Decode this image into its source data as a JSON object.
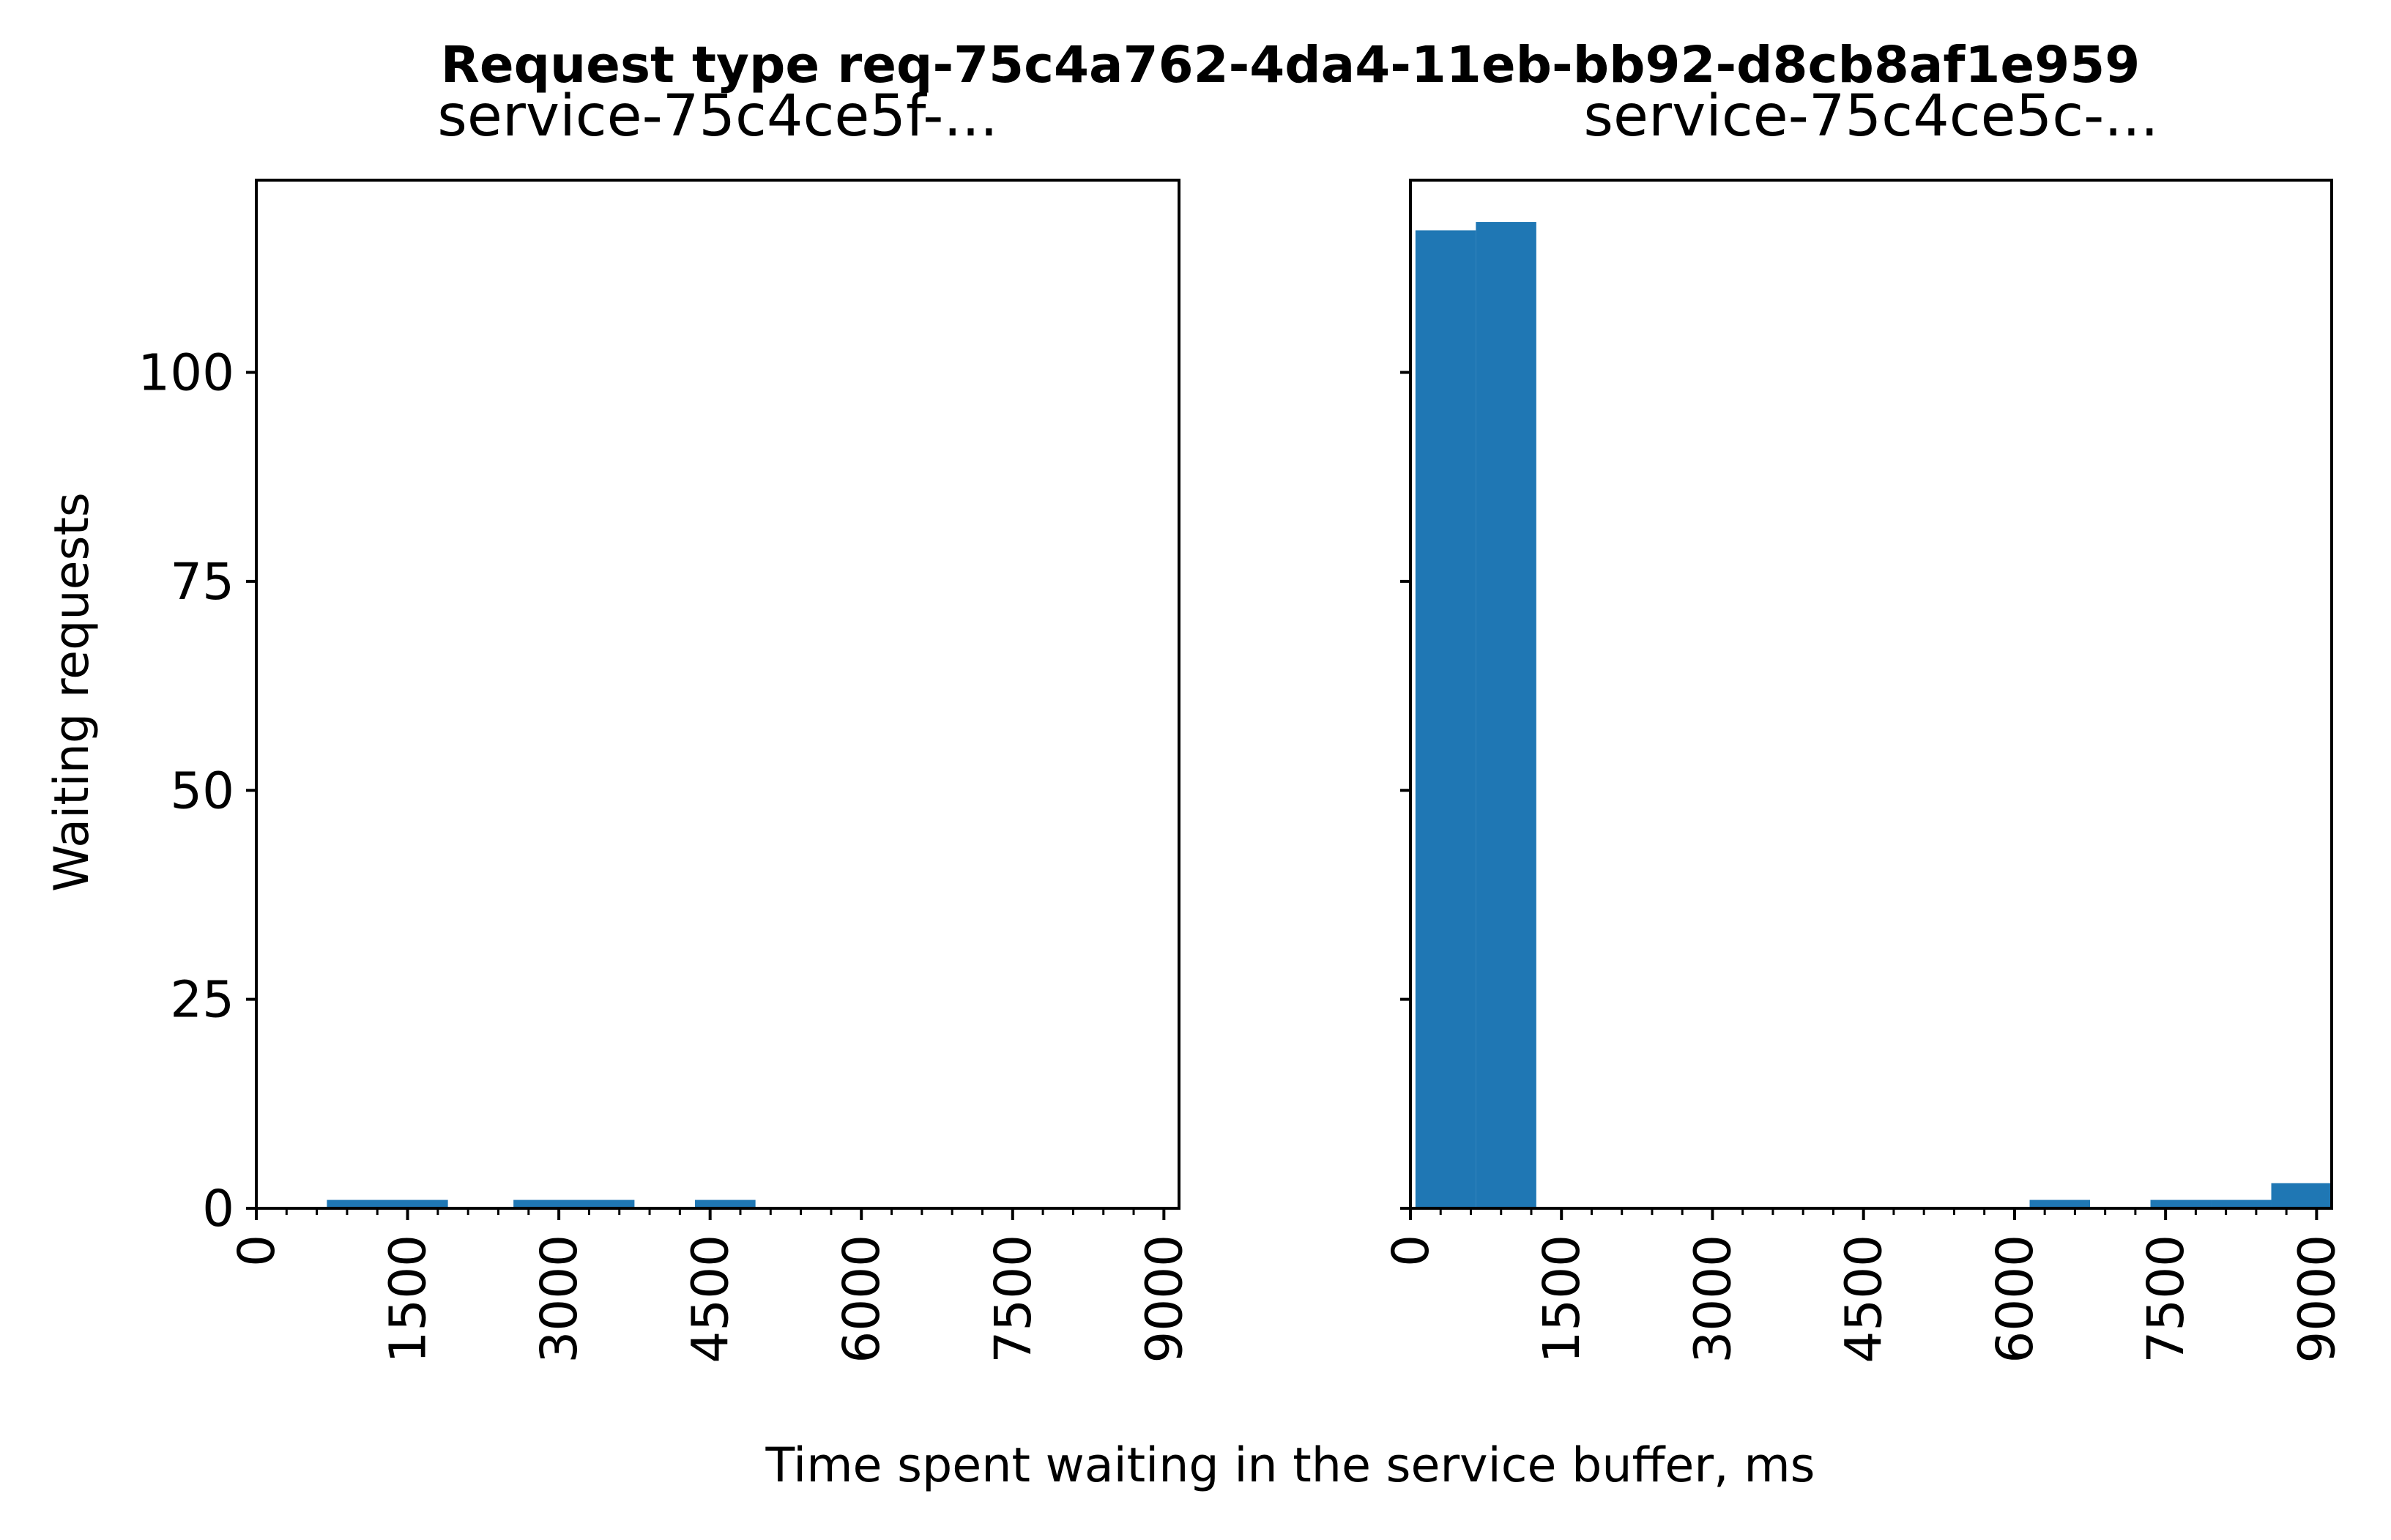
{
  "figure": {
    "suptitle": "Request type req-75c4a762-4da4-11eb-bb92-d8cb8af1e959",
    "xlabel": "Time spent waiting in the service buffer, ms",
    "ylabel": "Waiting requests"
  },
  "chart_data": [
    {
      "type": "bar",
      "title": "service-75c4ce5f-...",
      "xlabel": "Time spent waiting in the service buffer, ms",
      "ylabel": "Waiting requests",
      "xlim": [
        0,
        9150
      ],
      "ylim": [
        0,
        123
      ],
      "xticks": [
        0,
        1500,
        3000,
        4500,
        6000,
        7500,
        9000
      ],
      "yticks": [
        0,
        25,
        50,
        75,
        100
      ],
      "grid": false,
      "bar_color": "#1f77b4",
      "bins": [
        {
          "x0": 700,
          "x1": 1900,
          "count": 1
        },
        {
          "x0": 2550,
          "x1": 3750,
          "count": 1
        },
        {
          "x0": 4350,
          "x1": 4950,
          "count": 1
        }
      ]
    },
    {
      "type": "bar",
      "title": "service-75c4ce5c-...",
      "xlabel": "Time spent waiting in the service buffer, ms",
      "ylabel": "",
      "xlim": [
        0,
        9150
      ],
      "ylim": [
        0,
        123
      ],
      "xticks": [
        0,
        1500,
        3000,
        4500,
        6000,
        7500,
        9000
      ],
      "yticks": [
        0,
        25,
        50,
        75,
        100
      ],
      "grid": false,
      "bar_color": "#1f77b4",
      "bins": [
        {
          "x0": 50,
          "x1": 650,
          "count": 117
        },
        {
          "x0": 650,
          "x1": 1250,
          "count": 118
        },
        {
          "x0": 6150,
          "x1": 6750,
          "count": 1
        },
        {
          "x0": 7350,
          "x1": 7950,
          "count": 1
        },
        {
          "x0": 7950,
          "x1": 8550,
          "count": 1
        },
        {
          "x0": 8550,
          "x1": 9150,
          "count": 3
        }
      ]
    }
  ]
}
